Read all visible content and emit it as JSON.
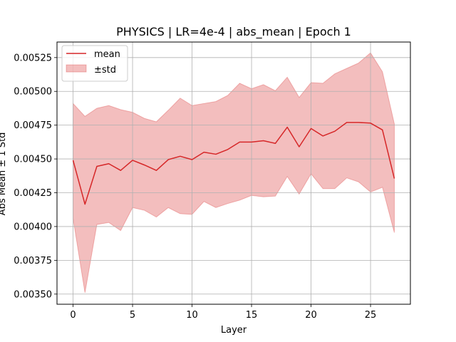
{
  "chart_data": {
    "type": "line",
    "title": "PHYSICS | LR=4e-4 | abs_mean | Epoch 1",
    "xlabel": "Layer",
    "ylabel": "Abs Mean ± 1 Std",
    "xlim": [
      -1.35,
      28.35
    ],
    "ylim": [
      0.003425,
      0.005365
    ],
    "xticks": [
      0,
      5,
      10,
      15,
      20,
      25
    ],
    "xtick_labels": [
      "0",
      "5",
      "10",
      "15",
      "20",
      "25"
    ],
    "yticks": [
      0.0035,
      0.00375,
      0.004,
      0.00425,
      0.0045,
      0.00475,
      0.005,
      0.00525
    ],
    "ytick_labels": [
      "0.00350",
      "0.00375",
      "0.00400",
      "0.00425",
      "0.00450",
      "0.00475",
      "0.00500",
      "0.00525"
    ],
    "grid": true,
    "legend_position": "top-left",
    "x": [
      0,
      1,
      2,
      3,
      4,
      5,
      6,
      7,
      8,
      9,
      10,
      11,
      12,
      13,
      14,
      15,
      16,
      17,
      18,
      19,
      20,
      21,
      22,
      23,
      24,
      25,
      26,
      27
    ],
    "series": [
      {
        "name": "mean",
        "color": "#d62728",
        "values": [
          0.00449,
          0.004165,
          0.004445,
          0.004465,
          0.004415,
          0.00449,
          0.004455,
          0.004415,
          0.004495,
          0.00452,
          0.004495,
          0.00455,
          0.004535,
          0.00457,
          0.004625,
          0.004625,
          0.004635,
          0.004615,
          0.004735,
          0.00459,
          0.004725,
          0.00467,
          0.004705,
          0.00477,
          0.00477,
          0.004765,
          0.004715,
          0.004355
        ]
      },
      {
        "name": "±std",
        "type": "band",
        "color": "#d62728",
        "fill_opacity": 0.3,
        "upper": [
          0.00491,
          0.004815,
          0.004875,
          0.004895,
          0.004865,
          0.004845,
          0.0048,
          0.004775,
          0.00486,
          0.00495,
          0.004895,
          0.00491,
          0.004925,
          0.00497,
          0.00506,
          0.00502,
          0.00505,
          0.005005,
          0.005105,
          0.004955,
          0.005065,
          0.00506,
          0.00513,
          0.00517,
          0.00521,
          0.005285,
          0.005145,
          0.00476
        ],
        "lower": [
          0.00406,
          0.00351,
          0.004015,
          0.00403,
          0.00397,
          0.00414,
          0.00412,
          0.00407,
          0.00414,
          0.004095,
          0.00409,
          0.004185,
          0.00414,
          0.00417,
          0.004195,
          0.00423,
          0.00422,
          0.004225,
          0.00437,
          0.00424,
          0.00439,
          0.00428,
          0.00428,
          0.00436,
          0.00433,
          0.004255,
          0.00429,
          0.003955
        ]
      }
    ]
  }
}
